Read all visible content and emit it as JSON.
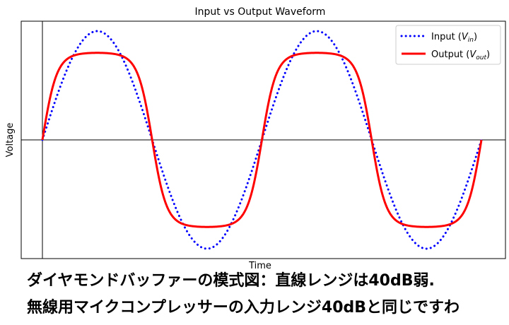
{
  "chart_data": {
    "type": "line",
    "title": "Input vs Output Waveform",
    "xlabel": "Time",
    "ylabel": "Voltage",
    "xlim": [
      0,
      4
    ],
    "ylim": [
      -1.05,
      1.12
    ],
    "cycles": 2,
    "legend_position": "top-right",
    "series": [
      {
        "name": "Input (V_in)",
        "label_main": "Input (",
        "label_var": "V",
        "label_sub": "in",
        "label_end": ")",
        "color": "#0000ff",
        "style": "dotted",
        "amplitude": 1.0,
        "clip": null
      },
      {
        "name": "Output (V_out)",
        "label_main": "Output (",
        "label_var": "V",
        "label_sub": "out",
        "label_end": ")",
        "color": "#ff0000",
        "style": "solid",
        "amplitude": 1.0,
        "clip": 0.8
      }
    ]
  },
  "caption": {
    "line1": "ダイヤモンドバッファーの模式図：直線レンジは40dB弱.",
    "line2": "無線用マイクコンプレッサーの入力レンジ40dBと同じですわ"
  }
}
